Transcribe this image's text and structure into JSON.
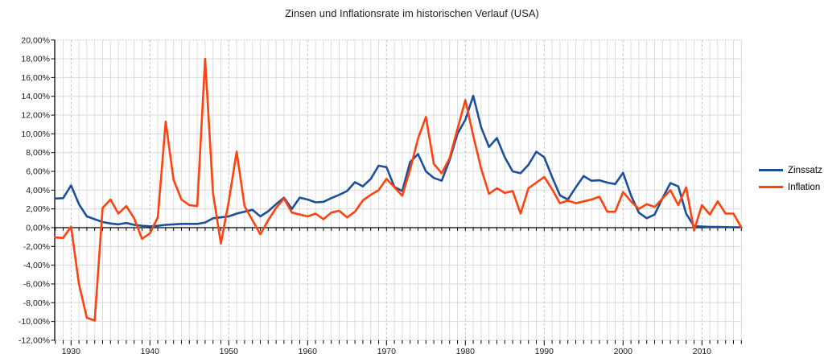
{
  "title": "Zinsen und Inflationsrate im historischen Verlauf (USA)",
  "legend": {
    "items": [
      {
        "label": "Zinssatz",
        "color": "#1c4f9c"
      },
      {
        "label": "Inflation",
        "color": "#ff420e"
      }
    ]
  },
  "colors": {
    "zinssatz_line": "#1c4f9c",
    "inflation_line": "#ff420e",
    "axis": "#000000",
    "gridline_minor": "#dcdcdc",
    "gridline_major": "#c0c0c0",
    "label_text": "#1a1a1a"
  },
  "chart_data": {
    "type": "line",
    "title": "Zinsen und Inflationsrate im historischen Verlauf (USA)",
    "xlabel": "",
    "ylabel": "",
    "ylim": [
      -12,
      20
    ],
    "y_tick_step": 2,
    "grid": true,
    "legend_position": "right",
    "x_ticks": [
      1930,
      1940,
      1950,
      1960,
      1970,
      1980,
      1990,
      2000,
      2010
    ],
    "x_tick_labels": [
      "1930",
      "1940",
      "1950",
      "1960",
      "1970",
      "1980",
      "1990",
      "2000",
      "2010"
    ],
    "y_tick_labels": [
      "20,00%",
      "18,00%",
      "16,00%",
      "14,00%",
      "12,00%",
      "10,00%",
      "8,00%",
      "6,00%",
      "4,00%",
      "2,00%",
      "0,00%",
      "-2,00%",
      "-4,00%",
      "-6,00%",
      "-8,00%",
      "-10,00%",
      "-12,00%"
    ],
    "x": [
      1928,
      1929,
      1930,
      1931,
      1932,
      1933,
      1934,
      1935,
      1936,
      1937,
      1938,
      1939,
      1940,
      1941,
      1942,
      1943,
      1944,
      1945,
      1946,
      1947,
      1948,
      1949,
      1950,
      1951,
      1952,
      1953,
      1954,
      1955,
      1956,
      1957,
      1958,
      1959,
      1960,
      1961,
      1962,
      1963,
      1964,
      1965,
      1966,
      1967,
      1968,
      1969,
      1970,
      1971,
      1972,
      1973,
      1974,
      1975,
      1976,
      1977,
      1978,
      1979,
      1980,
      1981,
      1982,
      1983,
      1984,
      1985,
      1986,
      1987,
      1988,
      1989,
      1990,
      1991,
      1992,
      1993,
      1994,
      1995,
      1996,
      1997,
      1998,
      1999,
      2000,
      2001,
      2002,
      2003,
      2004,
      2005,
      2006,
      2007,
      2008,
      2009,
      2010,
      2011,
      2012,
      2013,
      2014,
      2015
    ],
    "series": [
      {
        "name": "Zinssatz",
        "color": "#1c4f9c",
        "values": [
          3.1,
          3.15,
          4.5,
          2.5,
          1.2,
          0.9,
          0.6,
          0.45,
          0.35,
          0.5,
          0.3,
          0.2,
          0.15,
          0.2,
          0.3,
          0.35,
          0.4,
          0.4,
          0.4,
          0.55,
          1.0,
          1.1,
          1.2,
          1.5,
          1.7,
          1.9,
          1.2,
          1.75,
          2.5,
          3.2,
          2.0,
          3.2,
          3.0,
          2.7,
          2.75,
          3.15,
          3.5,
          3.9,
          4.85,
          4.4,
          5.2,
          6.6,
          6.45,
          4.35,
          3.9,
          7.0,
          7.85,
          6.0,
          5.3,
          5.0,
          7.2,
          10.0,
          11.5,
          14.05,
          10.7,
          8.6,
          9.55,
          7.5,
          6.0,
          5.8,
          6.7,
          8.1,
          7.5,
          5.4,
          3.45,
          3.0,
          4.3,
          5.5,
          5.0,
          5.05,
          4.8,
          4.65,
          5.85,
          3.45,
          1.6,
          1.0,
          1.4,
          3.15,
          4.75,
          4.4,
          1.5,
          0.15,
          0.12,
          0.08,
          0.09,
          0.06,
          0.04,
          0.05
        ]
      },
      {
        "name": "Inflation",
        "color": "#ff420e",
        "values": [
          -1.05,
          -1.1,
          0.1,
          -6.0,
          -9.6,
          -9.9,
          2.1,
          3.0,
          1.5,
          2.3,
          1.0,
          -1.2,
          -0.6,
          1.1,
          11.3,
          5.1,
          3.0,
          2.4,
          2.3,
          18.0,
          3.7,
          -1.7,
          2.8,
          8.1,
          2.3,
          0.8,
          -0.7,
          0.8,
          2.1,
          3.1,
          1.6,
          1.4,
          1.2,
          1.5,
          0.9,
          1.6,
          1.8,
          1.1,
          1.7,
          2.9,
          3.5,
          4.0,
          5.2,
          4.3,
          3.4,
          6.2,
          9.5,
          11.8,
          6.8,
          5.8,
          7.4,
          10.5,
          13.6,
          9.8,
          6.3,
          3.6,
          4.2,
          3.7,
          3.9,
          1.5,
          4.2,
          4.8,
          5.4,
          4.1,
          2.6,
          2.9,
          2.6,
          2.8,
          3.0,
          3.3,
          1.7,
          1.7,
          3.8,
          2.8,
          2.0,
          2.5,
          2.2,
          3.1,
          4.0,
          2.4,
          4.3,
          -0.3,
          2.4,
          1.4,
          2.8,
          1.5,
          1.5,
          0.0
        ]
      }
    ]
  }
}
